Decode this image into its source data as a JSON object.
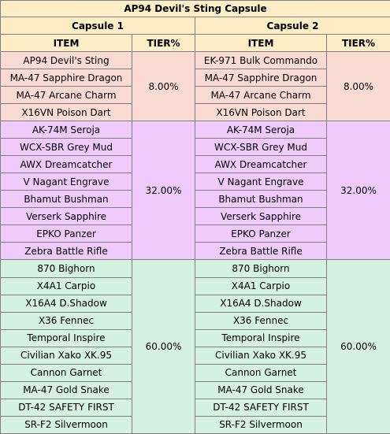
{
  "title": "AP94 Devil's Sting Capsule",
  "capsules": [
    {
      "name": "Capsule 1",
      "headers": {
        "item": "ITEM",
        "tier": "TIER%"
      },
      "tiers": [
        {
          "percent": "8.00%",
          "items": [
            "AP94 Devil's Sting",
            "MA-47 Sapphire Dragon",
            "MA-47 Arcane Charm",
            "X16VN Poison Dart"
          ]
        },
        {
          "percent": "32.00%",
          "items": [
            "AK-74M Seroja",
            "WCX-SBR Grey Mud",
            "AWX Dreamcatcher",
            "V Nagant Engrave",
            "Bhamut Bushman",
            "Verserk Sapphire",
            "EPKO Panzer",
            "Zebra Battle Rifle"
          ]
        },
        {
          "percent": "60.00%",
          "items": [
            "870 Bighorn",
            "X4A1 Carpio",
            "X16A4 D.Shadow",
            "X36 Fennec",
            "Temporal Inspire",
            "Civilian Xako XK.95",
            "Cannon Garnet",
            "MA-47 Gold Snake",
            "DT-42 SAFETY FIRST",
            "SR-F2 Silvermoon"
          ]
        }
      ]
    },
    {
      "name": "Capsule 2",
      "headers": {
        "item": "ITEM",
        "tier": "TIER%"
      },
      "tiers": [
        {
          "percent": "8.00%",
          "items": [
            "EK-971 Bulk Commando",
            "MA-47 Sapphire Dragon",
            "MA-47 Arcane Charm",
            "X16VN Poison Dart"
          ]
        },
        {
          "percent": "32.00%",
          "items": [
            "AK-74M Seroja",
            "WCX-SBR Grey Mud",
            "AWX Dreamcatcher",
            "V Nagant Engrave",
            "Bhamut Bushman",
            "Verserk Sapphire",
            "EPKO Panzer",
            "Zebra Battle Rifle"
          ]
        },
        {
          "percent": "60.00%",
          "items": [
            "870 Bighorn",
            "X4A1 Carpio",
            "X16A4 D.Shadow",
            "X36 Fennec",
            "Temporal Inspire",
            "Civilian Xako XK.95",
            "Cannon Garnet",
            "MA-47 Gold Snake",
            "DT-42 SAFETY FIRST",
            "SR-F2 Silvermoon"
          ]
        }
      ]
    }
  ],
  "colors": {
    "header": "#fdedc7",
    "tier1": "#fadbd3",
    "tier2": "#efcbfb",
    "tier3": "#d5f1df",
    "border": "#7f7f7f"
  }
}
